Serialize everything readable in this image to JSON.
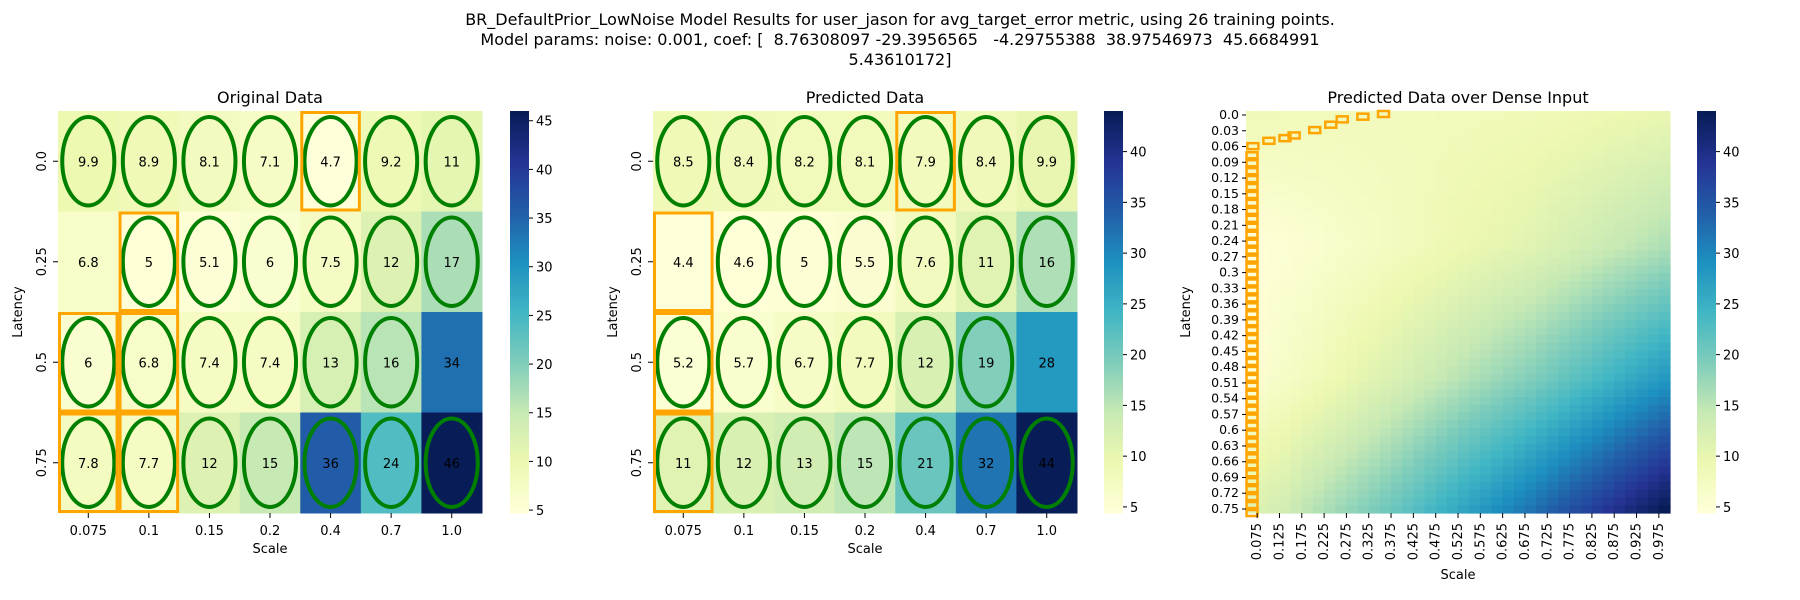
{
  "figure": {
    "title_lines": [
      "BR_DefaultPrior_LowNoise Model Results for user_jason for avg_target_error metric, using 26 training points.",
      "Model params: noise: 0.001, coef: [  8.76308097 -29.3956565   -4.29755388  38.97546973  45.6684991",
      "5.43610172]"
    ]
  },
  "colors": {
    "highlight_ring": "#008000",
    "selection_box": "#FFA500",
    "colormap": "YlGnBu"
  },
  "chart_data": [
    {
      "type": "heatmap",
      "title": "Original Data",
      "xlabel": "Scale",
      "ylabel": "Latency",
      "x_categories": [
        "0.075",
        "0.1",
        "0.15",
        "0.2",
        "0.4",
        "0.7",
        "1.0"
      ],
      "y_categories": [
        "0.0",
        "0.25",
        "0.5",
        "0.75"
      ],
      "values": [
        [
          9.9,
          8.9,
          8.1,
          7.1,
          4.7,
          9.2,
          11
        ],
        [
          6.8,
          5,
          5.1,
          6,
          7.5,
          12,
          17
        ],
        [
          6,
          6.8,
          7.4,
          7.4,
          13,
          16,
          34
        ],
        [
          7.8,
          7.7,
          12,
          15,
          36,
          24,
          46
        ]
      ],
      "colorbar": {
        "min": 4.7,
        "max": 46,
        "ticks": [
          5,
          10,
          15,
          20,
          25,
          30,
          35,
          40,
          45
        ]
      },
      "training_points": [
        [
          0,
          0
        ],
        [
          0,
          1
        ],
        [
          0,
          2
        ],
        [
          0,
          3
        ],
        [
          0,
          4
        ],
        [
          0,
          5
        ],
        [
          0,
          6
        ],
        [
          1,
          1
        ],
        [
          1,
          2
        ],
        [
          1,
          3
        ],
        [
          1,
          4
        ],
        [
          1,
          5
        ],
        [
          1,
          6
        ],
        [
          2,
          0
        ],
        [
          2,
          1
        ],
        [
          2,
          2
        ],
        [
          2,
          3
        ],
        [
          2,
          4
        ],
        [
          2,
          5
        ],
        [
          3,
          0
        ],
        [
          3,
          1
        ],
        [
          3,
          2
        ],
        [
          3,
          3
        ],
        [
          3,
          4
        ],
        [
          3,
          5
        ],
        [
          3,
          6
        ]
      ],
      "min_boxes": [
        [
          0,
          4
        ],
        [
          1,
          1
        ],
        [
          2,
          0
        ],
        [
          2,
          1
        ],
        [
          3,
          0
        ],
        [
          3,
          1
        ]
      ]
    },
    {
      "type": "heatmap",
      "title": "Predicted Data",
      "xlabel": "Scale",
      "ylabel": "Latency",
      "x_categories": [
        "0.075",
        "0.1",
        "0.15",
        "0.2",
        "0.4",
        "0.7",
        "1.0"
      ],
      "y_categories": [
        "0.0",
        "0.25",
        "0.5",
        "0.75"
      ],
      "values": [
        [
          8.5,
          8.4,
          8.2,
          8.1,
          7.9,
          8.4,
          9.9
        ],
        [
          4.4,
          4.6,
          5,
          5.5,
          7.6,
          11,
          16
        ],
        [
          5.2,
          5.7,
          6.7,
          7.7,
          12,
          19,
          28
        ],
        [
          11,
          12,
          13,
          15,
          21,
          32,
          44
        ]
      ],
      "colorbar": {
        "min": 4.4,
        "max": 44,
        "ticks": [
          5,
          10,
          15,
          20,
          25,
          30,
          35,
          40
        ]
      },
      "training_points": [
        [
          0,
          0
        ],
        [
          0,
          1
        ],
        [
          0,
          2
        ],
        [
          0,
          3
        ],
        [
          0,
          4
        ],
        [
          0,
          5
        ],
        [
          0,
          6
        ],
        [
          1,
          1
        ],
        [
          1,
          2
        ],
        [
          1,
          3
        ],
        [
          1,
          4
        ],
        [
          1,
          5
        ],
        [
          1,
          6
        ],
        [
          2,
          0
        ],
        [
          2,
          1
        ],
        [
          2,
          2
        ],
        [
          2,
          3
        ],
        [
          2,
          4
        ],
        [
          2,
          5
        ],
        [
          3,
          0
        ],
        [
          3,
          1
        ],
        [
          3,
          2
        ],
        [
          3,
          3
        ],
        [
          3,
          4
        ],
        [
          3,
          5
        ],
        [
          3,
          6
        ]
      ],
      "min_boxes": [
        [
          0,
          4
        ],
        [
          1,
          0
        ],
        [
          2,
          0
        ],
        [
          3,
          0
        ]
      ]
    },
    {
      "type": "heatmap",
      "title": "Predicted Data over Dense Input",
      "xlabel": "Scale",
      "ylabel": "Latency",
      "x_range": [
        0.075,
        1.0
      ],
      "y_range": [
        0.0,
        0.75
      ],
      "x_tick_labels": [
        "0.075",
        "0.125",
        "0.175",
        "0.225",
        "0.275",
        "0.325",
        "0.375",
        "0.425",
        "0.475",
        "0.525",
        "0.575",
        "0.625",
        "0.675",
        "0.725",
        "0.775",
        "0.825",
        "0.875",
        "0.925",
        "0.975"
      ],
      "y_tick_labels": [
        "0.0",
        "0.03",
        "0.06",
        "0.09",
        "0.12",
        "0.15",
        "0.18",
        "0.21",
        "0.24",
        "0.27",
        "0.3",
        "0.33",
        "0.36",
        "0.39",
        "0.42",
        "0.45",
        "0.48",
        "0.51",
        "0.54",
        "0.57",
        "0.6",
        "0.63",
        "0.66",
        "0.69",
        "0.72",
        "0.75"
      ],
      "anchor_values": {
        "x": [
          0.075,
          0.1,
          0.15,
          0.2,
          0.4,
          0.7,
          1.0
        ],
        "y": [
          0.0,
          0.25,
          0.5,
          0.75
        ],
        "z": [
          [
            8.5,
            8.4,
            8.2,
            8.1,
            7.9,
            8.4,
            9.9
          ],
          [
            4.4,
            4.6,
            5,
            5.5,
            7.6,
            11,
            16
          ],
          [
            5.2,
            5.7,
            6.7,
            7.7,
            12,
            19,
            28
          ],
          [
            11,
            12,
            13,
            15,
            21,
            32,
            44
          ]
        ]
      },
      "colorbar": {
        "min": 4.4,
        "max": 44,
        "ticks": [
          5,
          10,
          15,
          20,
          25,
          30,
          35,
          40
        ]
      },
      "min_path": [
        [
          0.0,
          0.4
        ],
        [
          0.0,
          0.36
        ],
        [
          0.01,
          0.32
        ],
        [
          0.02,
          0.28
        ],
        [
          0.03,
          0.25
        ],
        [
          0.04,
          0.22
        ],
        [
          0.05,
          0.19
        ],
        [
          0.06,
          0.17
        ],
        [
          0.07,
          0.15
        ],
        [
          0.08,
          0.125
        ],
        [
          0.09,
          0.1
        ],
        [
          0.09,
          0.075
        ]
      ]
    }
  ]
}
